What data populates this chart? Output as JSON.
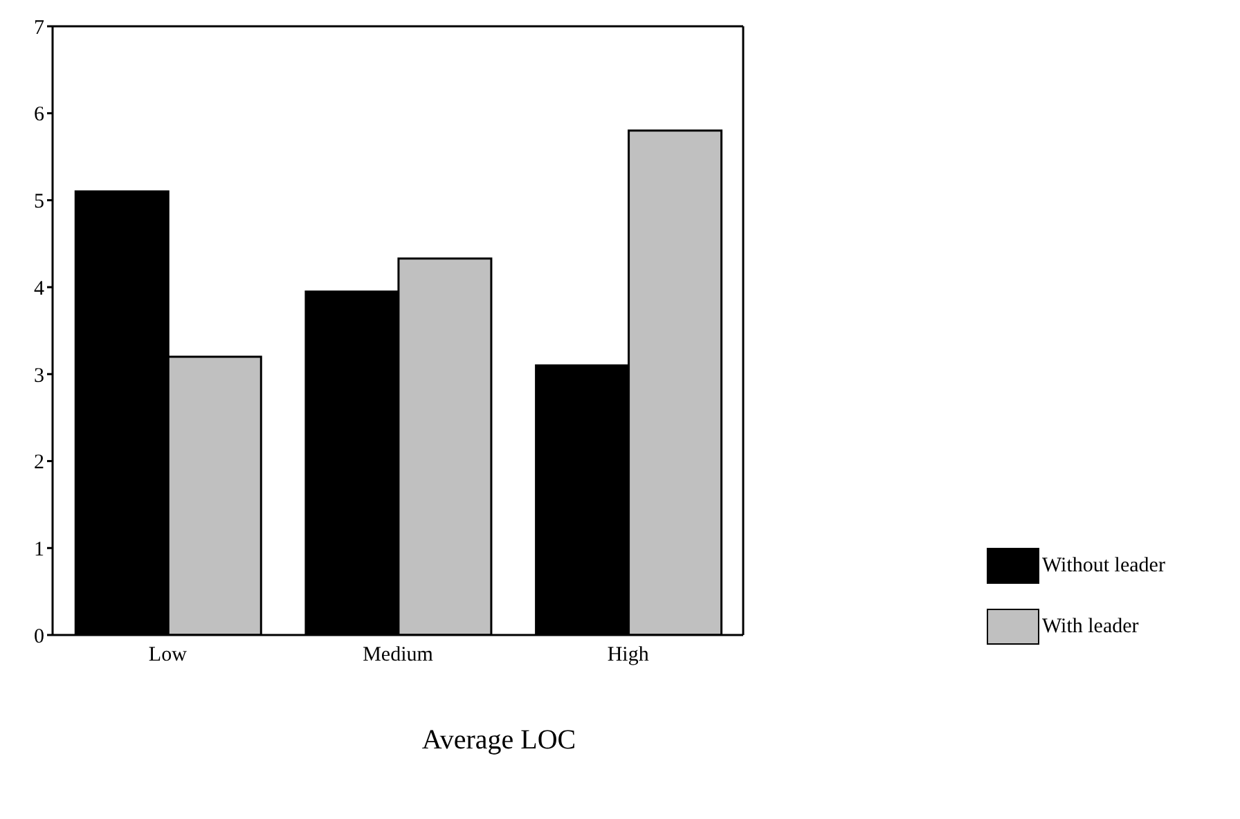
{
  "chart_data": {
    "type": "bar",
    "xlabel": "Average LOC",
    "categories": [
      "Low",
      "Medium",
      "High"
    ],
    "series": [
      {
        "name": "Without leader",
        "color": "#000000",
        "values": [
          5.1,
          3.95,
          3.1
        ]
      },
      {
        "name": "With leader",
        "color": "#c0c0c0",
        "values": [
          3.2,
          4.33,
          5.8
        ]
      }
    ],
    "ylim": [
      0,
      7
    ],
    "yticks": [
      0,
      1,
      2,
      3,
      4,
      5,
      6,
      7
    ],
    "grid": false,
    "legend": "bottom right"
  }
}
